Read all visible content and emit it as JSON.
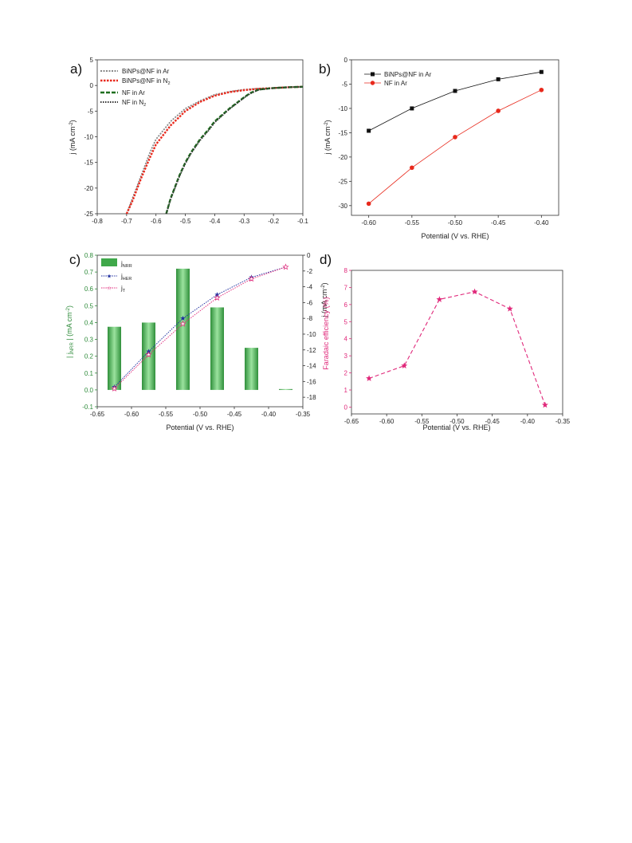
{
  "chart_data": [
    {
      "panel_label": "a)",
      "type": "line",
      "xlabel": "",
      "ylabel": "j (mA cm",
      "ylabel_sup": "-2",
      "ylabel_tail": ")",
      "xlim": [
        -0.8,
        -0.1
      ],
      "ylim": [
        -25,
        5
      ],
      "xticks": [
        "-0.8",
        "-0.7",
        "-0.6",
        "-0.5",
        "-0.4",
        "-0.3",
        "-0.2",
        "-0.1"
      ],
      "yticks": [
        "5",
        "0",
        "-5",
        "-10",
        "-15",
        "-20",
        "-25"
      ],
      "legend": [
        {
          "text": "BiNPs@NF in Ar",
          "sub": ""
        },
        {
          "text": "BiNPs@NF in N",
          "sub": "2"
        },
        {
          "text": "NF in Ar",
          "sub": ""
        },
        {
          "text": "NF in N",
          "sub": "2"
        }
      ],
      "series": [
        {
          "color": "#888888",
          "dash": "2,1.5",
          "x": [
            -0.7,
            -0.68,
            -0.65,
            -0.62,
            -0.6,
            -0.55,
            -0.5,
            -0.45,
            -0.4,
            -0.35,
            -0.3,
            -0.25,
            -0.2,
            -0.15,
            -0.1
          ],
          "y": [
            -25,
            -22,
            -17.5,
            -13,
            -10.5,
            -7,
            -4.5,
            -3,
            -1.8,
            -1.2,
            -0.8,
            -0.6,
            -0.5,
            -0.35,
            -0.25
          ]
        },
        {
          "color": "#e8291c",
          "dash": "2.5,1.5",
          "x": [
            -0.7,
            -0.68,
            -0.65,
            -0.62,
            -0.6,
            -0.55,
            -0.5,
            -0.45,
            -0.4,
            -0.35,
            -0.3,
            -0.25,
            -0.2,
            -0.15,
            -0.1
          ],
          "y": [
            -25,
            -22.5,
            -18,
            -14,
            -11.5,
            -7.8,
            -5,
            -3.2,
            -2,
            -1.3,
            -0.9,
            -0.65,
            -0.5,
            -0.35,
            -0.25
          ]
        },
        {
          "color": "#1f6f1f",
          "dash": "5,2",
          "x": [
            -0.565,
            -0.55,
            -0.52,
            -0.5,
            -0.48,
            -0.45,
            -0.42,
            -0.4,
            -0.35,
            -0.3,
            -0.28,
            -0.25,
            -0.2,
            -0.15,
            -0.1
          ],
          "y": [
            -25,
            -22,
            -17.5,
            -15,
            -13,
            -10.5,
            -8.5,
            -7,
            -4.5,
            -2.3,
            -1.5,
            -0.8,
            -0.5,
            -0.35,
            -0.25
          ]
        },
        {
          "color": "#333333",
          "dash": "1.5,1.5",
          "x": [
            -0.565,
            -0.55,
            -0.52,
            -0.5,
            -0.48,
            -0.45,
            -0.42,
            -0.4,
            -0.35,
            -0.3,
            -0.28,
            -0.25,
            -0.2,
            -0.15,
            -0.1
          ],
          "y": [
            -25,
            -22.2,
            -17.7,
            -15.2,
            -13.2,
            -10.7,
            -8.7,
            -7.2,
            -4.6,
            -2.4,
            -1.6,
            -0.85,
            -0.5,
            -0.35,
            -0.25
          ]
        }
      ]
    },
    {
      "panel_label": "b)",
      "type": "line",
      "xlabel": "Potential (V vs. RHE)",
      "ylabel": "j (mA cm",
      "ylabel_sup": "-2",
      "ylabel_tail": ")",
      "xlim": [
        -0.62,
        -0.38
      ],
      "ylim": [
        -32,
        0
      ],
      "xticks": [
        "-0.60",
        "-0.55",
        "-0.50",
        "-0.45",
        "-0.40"
      ],
      "yticks": [
        "0",
        "-5",
        "-10",
        "-15",
        "-20",
        "-25",
        "-30"
      ],
      "legend": [
        {
          "text": "BiNPs@NF in Ar",
          "sub": ""
        },
        {
          "text": "NF in Ar",
          "sub": ""
        }
      ],
      "series": [
        {
          "color": "#111111",
          "marker": "square",
          "x": [
            -0.6,
            -0.55,
            -0.5,
            -0.45,
            -0.4
          ],
          "y": [
            -14.6,
            -10.0,
            -6.4,
            -4.0,
            -2.5
          ]
        },
        {
          "color": "#e8291c",
          "marker": "circle",
          "x": [
            -0.6,
            -0.55,
            -0.5,
            -0.45,
            -0.4
          ],
          "y": [
            -29.6,
            -22.2,
            -15.9,
            -10.5,
            -6.2
          ]
        }
      ]
    },
    {
      "panel_label": "c)",
      "type": "bar",
      "xlabel": "Potential (V vs. RHE)",
      "ylabel_left": "| j",
      "ylabel_left_sub": "NRR",
      "ylabel_left_tail": " | (mA cm",
      "ylabel_left_sup": "-2",
      "ylabel_left_tail2": ")",
      "ylabel_right": "j (mA cm",
      "ylabel_right_sup": "-2",
      "ylabel_right_tail": ")",
      "xlim": [
        -0.65,
        -0.35
      ],
      "ylim_left": [
        -0.1,
        0.8
      ],
      "ylim_right": [
        -19.2,
        0
      ],
      "xticks": [
        "-0.65",
        "-0.60",
        "-0.55",
        "-0.50",
        "-0.45",
        "-0.40",
        "-0.35"
      ],
      "yticks_left": [
        "0.8",
        "0.7",
        "0.6",
        "0.5",
        "0.4",
        "0.3",
        "0.2",
        "0.1",
        "0.0",
        "-0.1"
      ],
      "yticks_right": [
        "0",
        "-2",
        "-4",
        "-6",
        "-8",
        "-10",
        "-12",
        "-14",
        "-16",
        "-18"
      ],
      "legend": [
        {
          "text": "j",
          "sub": "NRR"
        },
        {
          "text": "j",
          "sub": "HER"
        },
        {
          "text": "j",
          "sub": "T"
        }
      ],
      "bar_color": "#3fa84a",
      "bars": {
        "x": [
          -0.625,
          -0.575,
          -0.525,
          -0.475,
          -0.425,
          -0.375
        ],
        "values": [
          0.375,
          0.4,
          0.72,
          0.49,
          0.25,
          0.005
        ]
      },
      "series": [
        {
          "name": "j_HER",
          "color": "#1f2fa0",
          "marker": "star",
          "x": [
            -0.625,
            -0.575,
            -0.525,
            -0.475,
            -0.425,
            -0.375
          ],
          "y": [
            -16.7,
            -12.2,
            -8.0,
            -5.0,
            -2.8,
            -1.5
          ]
        },
        {
          "name": "j_T",
          "color": "#e0287a",
          "marker": "star-open",
          "x": [
            -0.625,
            -0.575,
            -0.525,
            -0.475,
            -0.425,
            -0.375
          ],
          "y": [
            -16.9,
            -12.6,
            -8.7,
            -5.4,
            -3.0,
            -1.5
          ]
        }
      ]
    },
    {
      "panel_label": "d)",
      "type": "line",
      "xlabel": "Potential (V vs. RHE)",
      "ylabel": "Faradaic efficiency (%)",
      "xlim": [
        -0.65,
        -0.35
      ],
      "ylim": [
        -0.4,
        8
      ],
      "xticks": [
        "-0.65",
        "-0.60",
        "-0.55",
        "-0.50",
        "-0.45",
        "-0.40",
        "-0.35"
      ],
      "yticks": [
        "8",
        "7",
        "6",
        "5",
        "4",
        "3",
        "2",
        "1",
        "0"
      ],
      "axis_color": "#e0287a",
      "series": [
        {
          "color": "#e0287a",
          "marker": "star",
          "x": [
            -0.625,
            -0.575,
            -0.525,
            -0.475,
            -0.425,
            -0.375
          ],
          "y": [
            1.68,
            2.42,
            6.3,
            6.75,
            5.75,
            0.12
          ]
        }
      ]
    }
  ]
}
